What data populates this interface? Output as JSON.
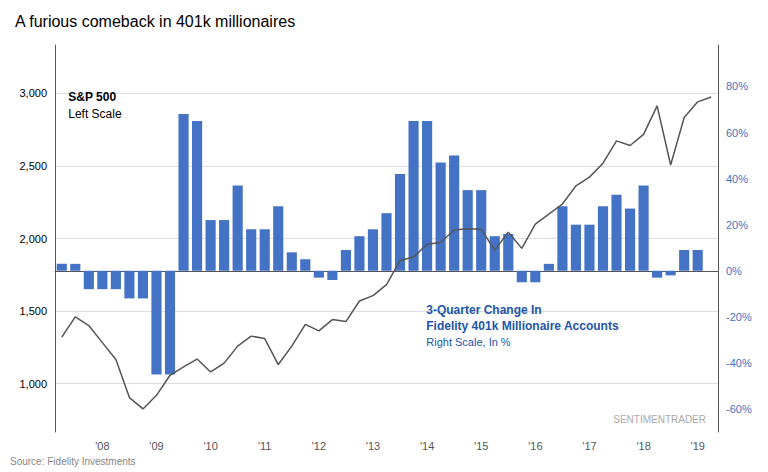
{
  "chart_data": {
    "type": "bar",
    "title": "A furious comeback in 401k millionaires",
    "categories": [
      null,
      null,
      null,
      "'08",
      null,
      null,
      null,
      "'09",
      null,
      null,
      null,
      "'10",
      null,
      null,
      null,
      "'11",
      null,
      null,
      null,
      "'12",
      null,
      null,
      null,
      "'13",
      null,
      null,
      null,
      "'14",
      null,
      null,
      null,
      "'15",
      null,
      null,
      null,
      "'16",
      null,
      null,
      null,
      "'17",
      null,
      null,
      null,
      "'18",
      null,
      null,
      null,
      "'19",
      null
    ],
    "series": [
      {
        "name": "S&P 500",
        "type": "line",
        "color": "#555555",
        "axis": "y",
        "values": [
          1320,
          1460,
          1400,
          1282,
          1166,
          903,
          825,
          919,
          1057,
          1115,
          1169,
          1080,
          1141,
          1258,
          1327,
          1310,
          1131,
          1258,
          1408,
          1363,
          1441,
          1427,
          1569,
          1606,
          1682,
          1848,
          1872,
          1960,
          1972,
          2059,
          2068,
          2063,
          1920,
          2044,
          1932,
          2099,
          2168,
          2238,
          2363,
          2423,
          2519,
          2673,
          2641,
          2718,
          2914,
          2507,
          2834,
          2942,
          2976
        ]
      },
      {
        "name": "Fidelity 401k Millionaire Accounts",
        "type": "bar",
        "color": "#4472C4",
        "axis": "y2",
        "values": [
          3,
          3,
          -8,
          -8,
          -8,
          -12,
          -12,
          -45,
          -45,
          68,
          65,
          22,
          22,
          37,
          18,
          18,
          28,
          8,
          5,
          -3,
          -4,
          9,
          15,
          18,
          25,
          42,
          65,
          65,
          47,
          50,
          35,
          35,
          15,
          16,
          -5,
          -5,
          3,
          28,
          20,
          20,
          28,
          33,
          27,
          37,
          -3,
          -2,
          9,
          9,
          null
        ]
      }
    ],
    "ylim": [
      666,
      3334
    ],
    "yticks": [
      {
        "value": 1000,
        "label": "1,000"
      },
      {
        "value": 1500,
        "label": "1,500"
      },
      {
        "value": 2000,
        "label": "2,000"
      },
      {
        "value": 2500,
        "label": "2,500"
      },
      {
        "value": 3000,
        "label": "3,000"
      }
    ],
    "y2lim": [
      -70,
      98
    ],
    "y2ticks": [
      {
        "value": -60,
        "label": "-60%"
      },
      {
        "value": -40,
        "label": "-40%"
      },
      {
        "value": -20,
        "label": "-20%"
      },
      {
        "value": 0,
        "label": "0%"
      },
      {
        "value": 20,
        "label": "20%"
      },
      {
        "value": 40,
        "label": "40%"
      },
      {
        "value": 60,
        "label": "60%"
      },
      {
        "value": 80,
        "label": "80%"
      }
    ],
    "grid": true,
    "annotations": [
      {
        "text": "S&P 500"
      },
      {
        "text": "Left Scale"
      },
      {
        "text": "3-Quarter Change In",
        "color": "#2255AA"
      },
      {
        "text": "Fidelity 401k Millionaire Accounts",
        "color": "#2255AA"
      },
      {
        "text": "Right Scale, In %",
        "color": "#2255AA"
      },
      {
        "text": "SENTIMENTRADER"
      },
      {
        "text": "Source: Fidelity Investments"
      }
    ]
  }
}
